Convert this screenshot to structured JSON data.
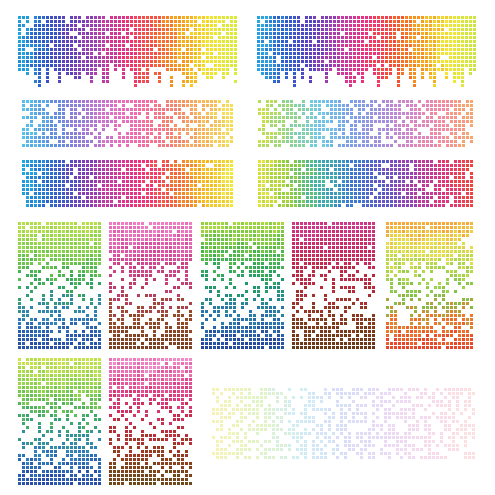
{
  "canvas": {
    "background": "#ffffff"
  },
  "swatches": [
    {
      "id": "banner-spectrum-1",
      "kind": "banner-dripping",
      "fade": "none",
      "dot_fraction": 0.95,
      "mosaic_seed": 11,
      "stops": [
        "#1fa4e0",
        "#2f55c8",
        "#6a3fb8",
        "#b43fae",
        "#ee2f7a",
        "#f55a3a",
        "#f7a21a",
        "#f3e52a",
        "#d8ea3c"
      ]
    },
    {
      "id": "banner-spectrum-2",
      "kind": "banner-dripping",
      "fade": "none",
      "dot_fraction": 0.95,
      "mosaic_seed": 23,
      "stops": [
        "#2aa7e0",
        "#2e5fcd",
        "#5b3fbf",
        "#c03aa8",
        "#f0307a",
        "#f4512f",
        "#f59b1b",
        "#f3e72d",
        "#cbe63f"
      ]
    },
    {
      "id": "strip-pastel-spectrum",
      "kind": "strip",
      "fade": "none",
      "dot_fraction": 0.8,
      "mosaic_seed": 37,
      "stops": [
        "#56c3ec",
        "#5f8fe0",
        "#9a7ad8",
        "#e070c8",
        "#f56aa6",
        "#f58070",
        "#f8b45a",
        "#f5e05a"
      ]
    },
    {
      "id": "strip-lime-to-orange",
      "kind": "strip",
      "fade": "none",
      "dot_fraction": 0.8,
      "mosaic_seed": 41,
      "stops": [
        "#c8e04a",
        "#8fd48a",
        "#6fc9e8",
        "#7aa0e8",
        "#a08ee0",
        "#d883c8",
        "#f58aa0",
        "#f8a66a"
      ]
    },
    {
      "id": "strip-vivid-spectrum",
      "kind": "strip",
      "fade": "none",
      "dot_fraction": 0.92,
      "mosaic_seed": 53,
      "stops": [
        "#1ea6e2",
        "#2d62cc",
        "#7a3db8",
        "#d03a9e",
        "#f22f78",
        "#f5623a",
        "#f7b21d",
        "#f1e83a"
      ]
    },
    {
      "id": "strip-vivid-lime-to-red",
      "kind": "strip",
      "fade": "none",
      "dot_fraction": 0.92,
      "mosaic_seed": 67,
      "stops": [
        "#e1e23a",
        "#8ccd3e",
        "#3fb3a8",
        "#3a7cd0",
        "#5b5ac8",
        "#a03fb0",
        "#e0357e",
        "#f0453e"
      ]
    },
    {
      "id": "tile-green-to-blue",
      "kind": "tile-fade-middle",
      "fade": "middle",
      "dot_fraction": 0.85,
      "mosaic_seed": 71,
      "stops": [
        "#b8e04a",
        "#7fcf4a",
        "#34a85a",
        "#2f7fbf",
        "#2b4fa8"
      ]
    },
    {
      "id": "tile-pink-to-brown",
      "kind": "tile-fade-middle",
      "fade": "middle",
      "dot_fraction": 0.85,
      "mosaic_seed": 79,
      "stops": [
        "#f07cc4",
        "#d94a9a",
        "#c03a70",
        "#9a4a2a",
        "#7a3f22"
      ]
    },
    {
      "id": "tile-lime-green-blue",
      "kind": "tile-fade-middle",
      "fade": "middle",
      "dot_fraction": 0.9,
      "mosaic_seed": 83,
      "stops": [
        "#a8d83a",
        "#4cb84a",
        "#1f9a6a",
        "#2a78b0",
        "#27479e"
      ]
    },
    {
      "id": "tile-magenta-red-brown",
      "kind": "tile-fade-middle",
      "fade": "middle",
      "dot_fraction": 0.9,
      "mosaic_seed": 89,
      "stops": [
        "#d0388c",
        "#c72a5a",
        "#b82a3a",
        "#8a3a1e",
        "#6a3a18"
      ]
    },
    {
      "id": "tile-orange-lime-red",
      "kind": "tile-fade-middle",
      "fade": "middle",
      "dot_fraction": 0.85,
      "mosaic_seed": 97,
      "stops": [
        "#f7a83a",
        "#e8e04a",
        "#a8d64a",
        "#7cc24a",
        "#f07a2a",
        "#e8452a"
      ]
    },
    {
      "id": "tile-green-to-blue-2",
      "kind": "tile-fade-middle",
      "fade": "middle",
      "dot_fraction": 0.85,
      "mosaic_seed": 101,
      "stops": [
        "#c8e44a",
        "#84d04a",
        "#3aa86a",
        "#2f7fbf",
        "#2b4aa8"
      ]
    },
    {
      "id": "tile-pink-red-brown-2",
      "kind": "tile-fade-middle",
      "fade": "middle",
      "dot_fraction": 0.85,
      "mosaic_seed": 107,
      "stops": [
        "#f08ac8",
        "#e0408a",
        "#c82a4a",
        "#9a3a1e",
        "#6a4a1a"
      ]
    },
    {
      "id": "strip-faint-pastel",
      "kind": "strip-faint",
      "fade": "uniform",
      "dot_fraction": 0.7,
      "mosaic_seed": 113,
      "stops": [
        "#f5ee9a",
        "#d8f0b0",
        "#bfe6f2",
        "#c9d2f6",
        "#e2cdf2",
        "#f6cde4",
        "#fbd6d6"
      ]
    }
  ]
}
